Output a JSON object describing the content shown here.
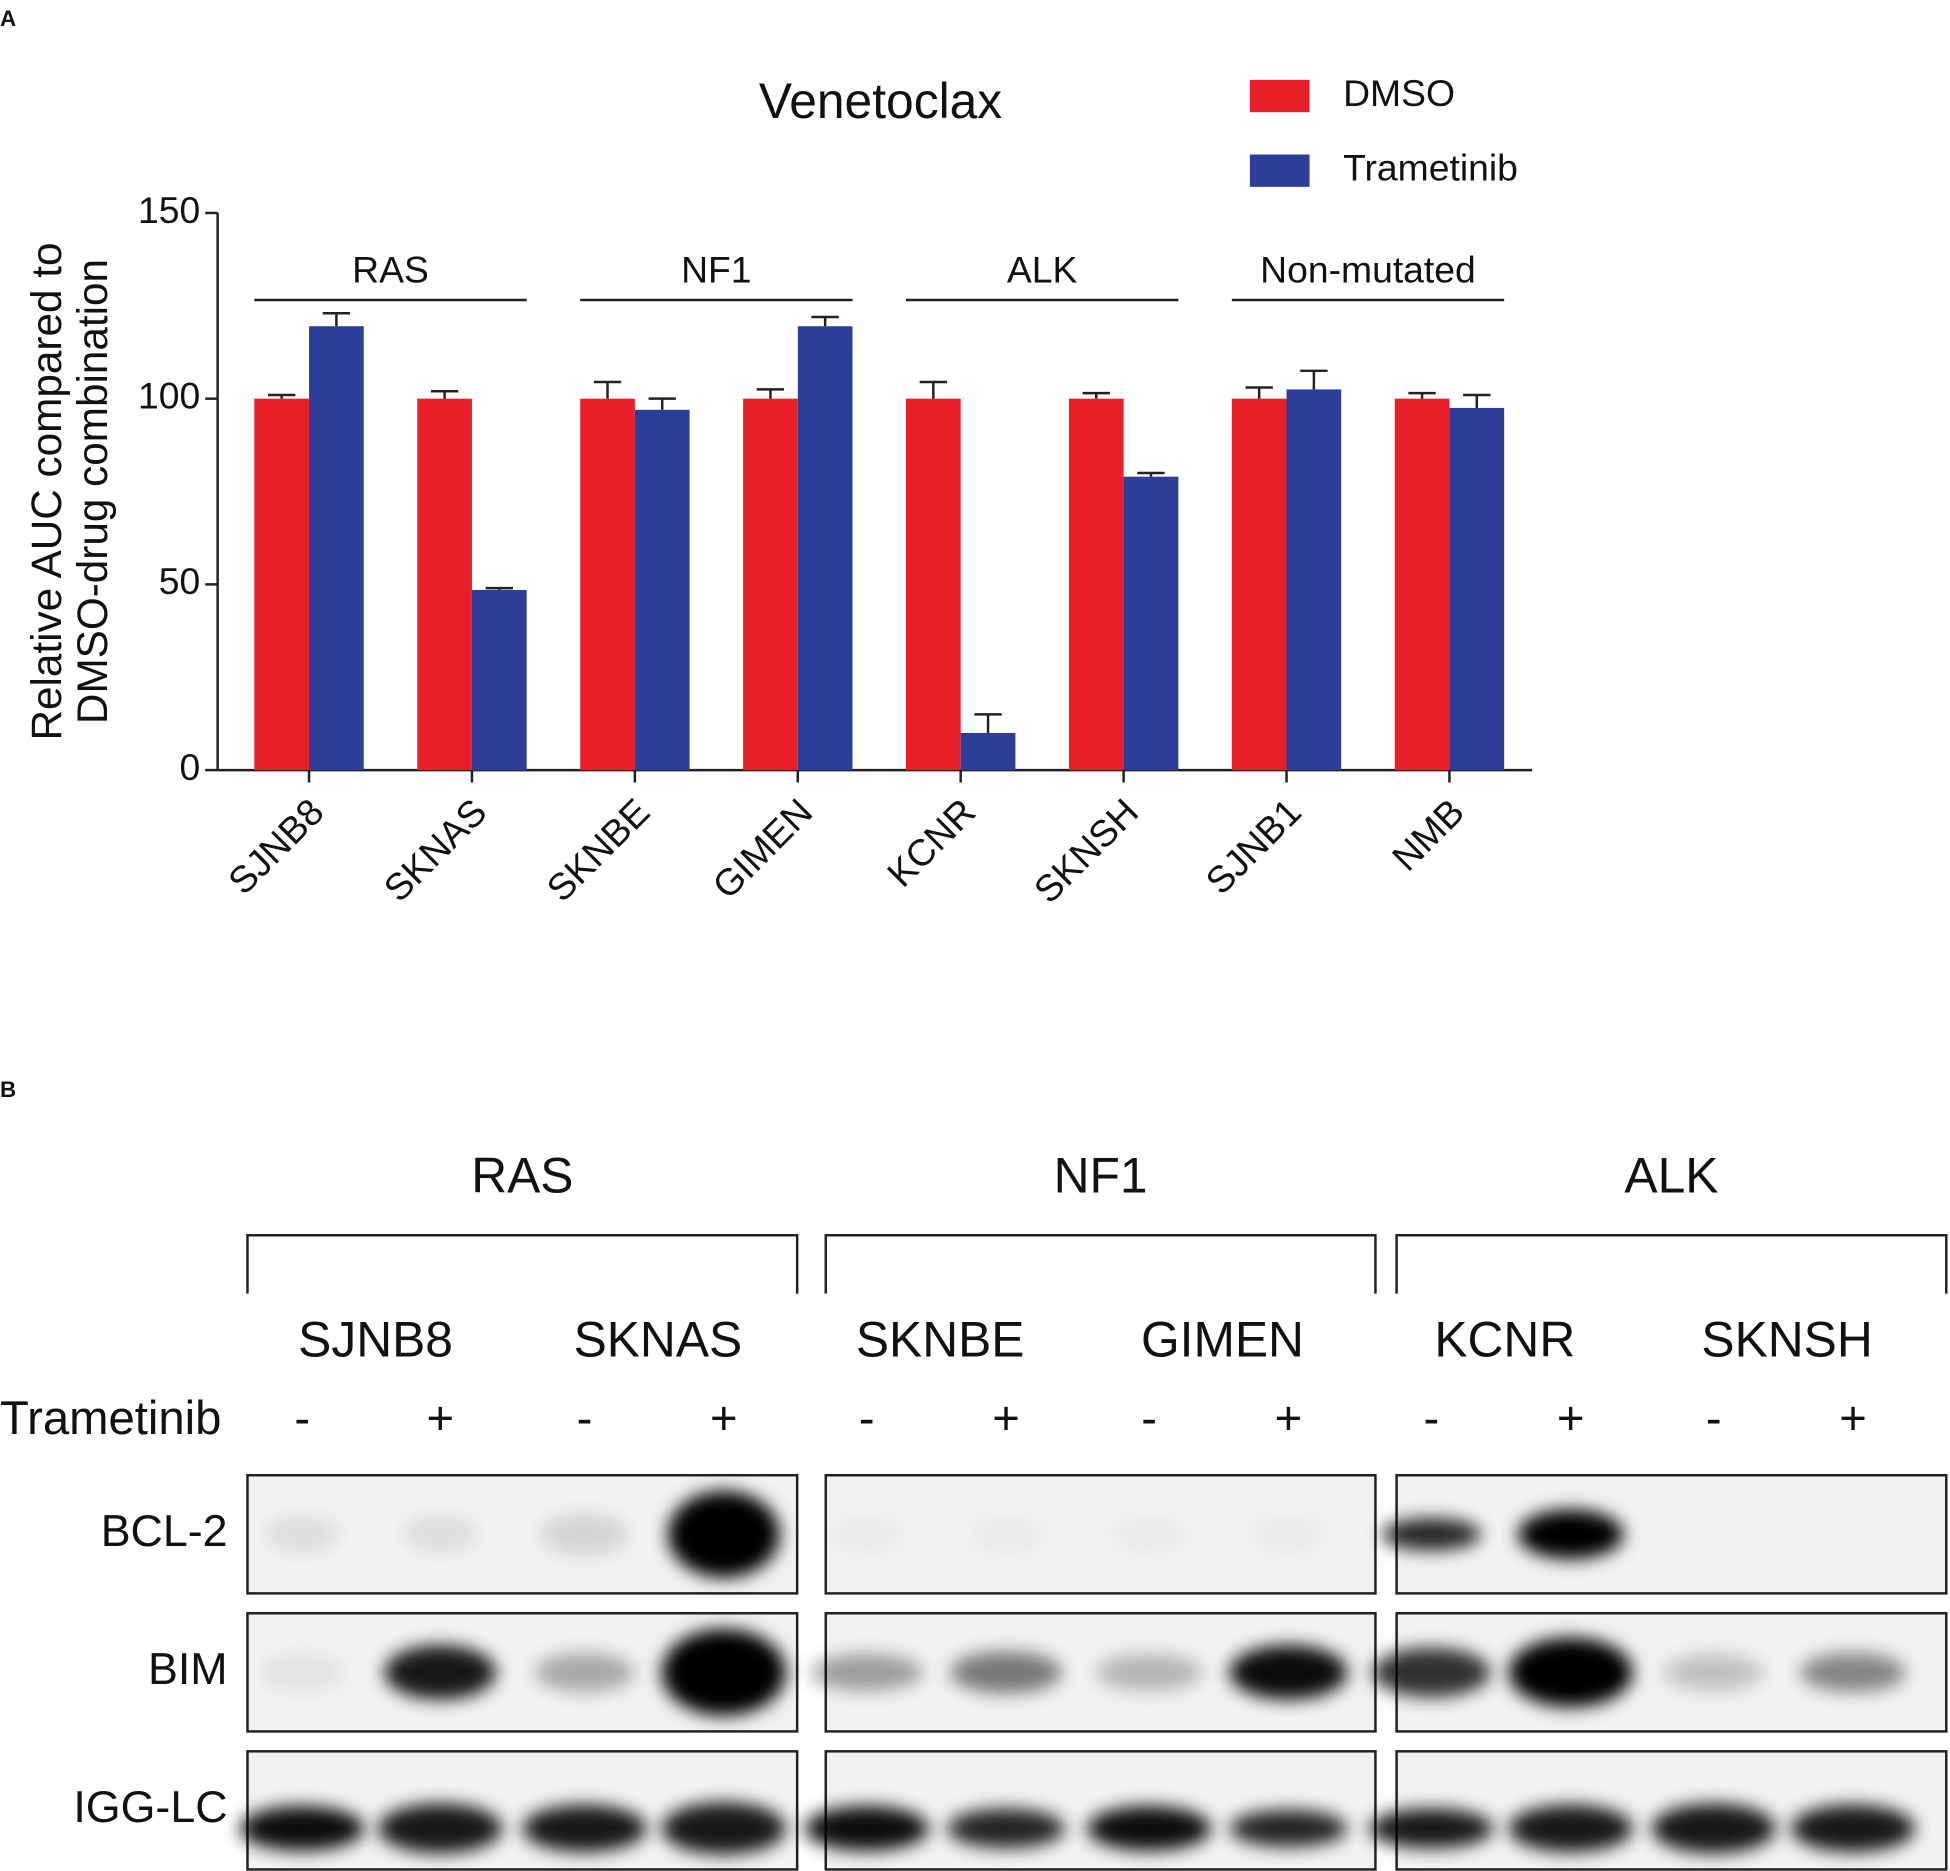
{
  "panel_labels": [
    "A",
    "B"
  ],
  "chart_data": {
    "type": "bar",
    "title": "Venetoclax",
    "y_label": [
      "Relative AUC  compared to",
      "DMSO-drug combination"
    ],
    "categories": [
      "SJNB8",
      "SKNAS",
      "SKNBE",
      "GIMEN",
      "KCNR",
      "SKNSH",
      "SJNB1",
      "NMB"
    ],
    "group_labels": [
      "RAS",
      "NF1",
      "ALK",
      "Non-mutated"
    ],
    "series": [
      {
        "name": "DMSO",
        "color": "#e8202a",
        "values": [
          100,
          100,
          100,
          100,
          100,
          100,
          100,
          100
        ],
        "errors": [
          1,
          2,
          4.5,
          2.5,
          4.5,
          1.5,
          3,
          1.5
        ]
      },
      {
        "name": "Trametinib",
        "color": "#2e3d97",
        "values": [
          119.5,
          48.5,
          97,
          119.5,
          10,
          79,
          102.5,
          97.5
        ],
        "errors": [
          3.5,
          0.5,
          3,
          2.5,
          5,
          1,
          5,
          3.5
        ]
      }
    ],
    "ylim": [
      0,
      150
    ],
    "yticks": [
      0,
      50,
      100,
      150
    ],
    "grid": false,
    "legend": "top-right"
  },
  "blot": {
    "groups": [
      {
        "label": "RAS",
        "lines": [
          "SJNB8",
          "SKNAS"
        ]
      },
      {
        "label": "NF1",
        "lines": [
          "SKNBE",
          "GIMEN"
        ]
      },
      {
        "label": "ALK",
        "lines": [
          "KCNR",
          "SKNSH"
        ]
      }
    ],
    "treatment": "Trametinib",
    "signs": [
      "-",
      "+",
      "-",
      "+",
      "-",
      "+",
      "-",
      "+",
      "-",
      "+",
      "-",
      "+"
    ],
    "rows": [
      "BCL-2",
      "BIM",
      "IGG-LC"
    ]
  }
}
